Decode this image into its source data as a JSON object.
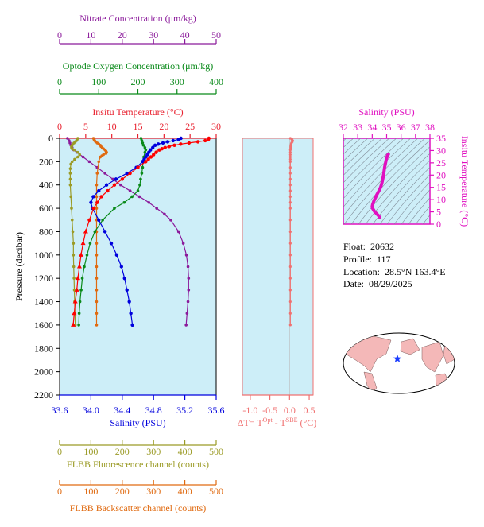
{
  "float_info": {
    "float_label": "Float:",
    "float_value": "20632",
    "profile_label": "Profile:",
    "profile_value": "117",
    "location_label": "Location:",
    "location_value": "28.5°N  163.4°E",
    "date_label": "Date:",
    "date_value": "08/29/2025"
  },
  "colors": {
    "temperature": "#ff0000",
    "salinity": "#0000dd",
    "oxygen": "#0a8a1a",
    "nitrate": "#8b1a9b",
    "fluorescence": "#9b9b26",
    "backscatter": "#e06a10",
    "delta_t": "#f07070",
    "ts": "#e010c0",
    "plot_bg": "#cdeef8",
    "label_red": "#e8202e",
    "map_land": "#f4b8b8",
    "map_ocean": "#ffffff"
  },
  "chart_data": [
    {
      "id": "main-profile",
      "type": "line",
      "ylabel": "Pressure (decibar)",
      "ylim": [
        0,
        2200
      ],
      "yticks": [
        0,
        200,
        400,
        600,
        800,
        1000,
        1200,
        1400,
        1600,
        1800,
        2000,
        2200
      ],
      "grid": false,
      "axes": {
        "nitrate": {
          "label": "Nitrate Concentration (μm/kg)",
          "range": [
            0,
            50
          ],
          "ticks": [
            0,
            10,
            20,
            30,
            40,
            50
          ],
          "position": "top"
        },
        "oxygen": {
          "label": "Optode Oxygen Concentration (μm/kg)",
          "range": [
            0,
            400
          ],
          "ticks": [
            0,
            100,
            200,
            300,
            400
          ],
          "position": "top"
        },
        "temperature": {
          "label": "Insitu Temperature (°C)",
          "range": [
            0,
            30
          ],
          "ticks": [
            0,
            5,
            10,
            15,
            20,
            25,
            30
          ],
          "position": "top"
        },
        "salinity": {
          "label": "Salinity (PSU)",
          "range": [
            33.6,
            35.6
          ],
          "ticks": [
            "33.6",
            "34.0",
            "34.4",
            "34.8",
            "35.2",
            "35.6"
          ],
          "position": "bottom"
        },
        "fluorescence": {
          "label": "FLBB Fluorescence channel (counts)",
          "range": [
            0,
            500
          ],
          "ticks": [
            0,
            100,
            200,
            300,
            400,
            500
          ],
          "position": "bottom"
        },
        "backscatter": {
          "label": "FLBB Backscatter channel (counts)",
          "range": [
            0,
            500
          ],
          "ticks": [
            0,
            100,
            200,
            300,
            400,
            500
          ],
          "position": "bottom"
        }
      },
      "series": [
        {
          "key": "temperature",
          "y": [
            0,
            10,
            20,
            30,
            40,
            50,
            60,
            70,
            80,
            90,
            100,
            120,
            140,
            160,
            180,
            200,
            250,
            300,
            350,
            400,
            450,
            500,
            550,
            600,
            700,
            800,
            900,
            1000,
            1100,
            1200,
            1300,
            1400,
            1500,
            1600
          ],
          "x": [
            28.6,
            28.5,
            27.9,
            26.5,
            24.8,
            23.2,
            22.0,
            21.0,
            20.2,
            19.6,
            19.1,
            18.5,
            18.0,
            17.5,
            17.0,
            16.5,
            15.0,
            13.5,
            12.0,
            10.5,
            9.2,
            8.0,
            7.2,
            6.5,
            5.7,
            5.0,
            4.5,
            4.1,
            3.8,
            3.5,
            3.3,
            3.0,
            2.8,
            2.6
          ]
        },
        {
          "key": "salinity",
          "y": [
            0,
            10,
            20,
            30,
            40,
            50,
            60,
            80,
            100,
            120,
            140,
            160,
            180,
            200,
            250,
            300,
            350,
            400,
            450,
            500,
            550,
            600,
            700,
            800,
            900,
            1000,
            1100,
            1200,
            1300,
            1400,
            1500,
            1600
          ],
          "x": [
            35.15,
            35.12,
            35.05,
            34.98,
            34.92,
            34.86,
            34.82,
            34.79,
            34.76,
            34.74,
            34.72,
            34.7,
            34.68,
            34.66,
            34.58,
            34.46,
            34.32,
            34.2,
            34.1,
            34.03,
            34.0,
            34.02,
            34.1,
            34.18,
            34.26,
            34.33,
            34.39,
            34.43,
            34.46,
            34.49,
            34.51,
            34.53
          ]
        },
        {
          "key": "oxygen",
          "y": [
            0,
            20,
            40,
            60,
            80,
            100,
            120,
            160,
            200,
            250,
            300,
            350,
            400,
            450,
            500,
            550,
            600,
            700,
            800,
            900,
            1000,
            1100,
            1200,
            1300,
            1400,
            1500,
            1600
          ],
          "x": [
            208,
            210,
            212,
            214,
            218,
            220,
            218,
            215,
            213,
            212,
            210,
            207,
            205,
            200,
            185,
            165,
            140,
            110,
            90,
            78,
            70,
            63,
            58,
            55,
            52,
            50,
            49
          ]
        },
        {
          "key": "nitrate",
          "y": [
            0,
            20,
            40,
            60,
            80,
            100,
            120,
            160,
            200,
            250,
            300,
            350,
            400,
            450,
            500,
            550,
            600,
            650,
            700,
            800,
            900,
            1000,
            1100,
            1200,
            1300,
            1400,
            1500,
            1600
          ],
          "x": [
            2.5,
            3.0,
            3.3,
            3.6,
            4.0,
            4.5,
            5.5,
            7.5,
            9.5,
            12.0,
            14.5,
            17.0,
            19.5,
            22.5,
            25.5,
            28.5,
            31.0,
            33.5,
            35.5,
            38.0,
            39.5,
            40.5,
            41.0,
            41.2,
            41.2,
            41.0,
            40.7,
            40.4
          ]
        },
        {
          "key": "fluorescence",
          "y": [
            0,
            10,
            20,
            30,
            40,
            50,
            60,
            70,
            80,
            90,
            100,
            120,
            140,
            160,
            180,
            200,
            220,
            260,
            300,
            350,
            400,
            500,
            600,
            700,
            800,
            900,
            1000,
            1100,
            1200,
            1300,
            1400,
            1500,
            1600
          ],
          "x": [
            58,
            56,
            54,
            50,
            46,
            42,
            40,
            38,
            38,
            40,
            46,
            58,
            64,
            58,
            48,
            40,
            36,
            34,
            34,
            34,
            34,
            36,
            38,
            40,
            42,
            44,
            44,
            45,
            46,
            47,
            48,
            49,
            50
          ]
        },
        {
          "key": "backscatter",
          "y": [
            0,
            10,
            20,
            30,
            40,
            50,
            60,
            70,
            80,
            90,
            100,
            110,
            120,
            130,
            140,
            150,
            160,
            200,
            300,
            400,
            500,
            600,
            700,
            800,
            900,
            1000,
            1100,
            1200,
            1300,
            1400,
            1500,
            1600
          ],
          "x": [
            108,
            110,
            112,
            115,
            120,
            125,
            130,
            132,
            136,
            140,
            145,
            148,
            150,
            148,
            140,
            135,
            130,
            125,
            120,
            118,
            118,
            118,
            118,
            118,
            118,
            118,
            118,
            118,
            118,
            118,
            118,
            118
          ]
        }
      ]
    },
    {
      "id": "delta-t",
      "type": "line",
      "xlabel": "ΔT= T",
      "xlabel_sup1": "Opt",
      "xlabel_mid": " - T",
      "xlabel_sup2": "SBE",
      "xlabel_unit": " (°C)",
      "xlim": [
        -1.2,
        0.6
      ],
      "xticks": [
        "-1.0",
        "-0.5",
        "0.0",
        "0.5"
      ],
      "xtick_values": [
        -1.0,
        -0.5,
        0.0,
        0.5
      ],
      "ylim": [
        0,
        2200
      ],
      "x": [
        0.02,
        0.06,
        0.08,
        0.07,
        0.05,
        0.04,
        0.04,
        0.03,
        0.03,
        0.03,
        0.02,
        0.02,
        0.02,
        0.02,
        0.02,
        0.02,
        0.02,
        0.02,
        0.02,
        0.02,
        0.02,
        0.02,
        0.02,
        0.02,
        0.02,
        0.02,
        0.02,
        0.02,
        0.02,
        0.02,
        0.02,
        0.02,
        0.02,
        0.02
      ],
      "y": [
        0,
        10,
        20,
        30,
        40,
        50,
        60,
        70,
        80,
        90,
        100,
        120,
        140,
        160,
        180,
        200,
        250,
        300,
        350,
        400,
        450,
        500,
        550,
        600,
        700,
        800,
        900,
        1000,
        1100,
        1200,
        1300,
        1400,
        1500,
        1600
      ]
    },
    {
      "id": "ts-diagram",
      "type": "line",
      "xlabel": "Salinity (PSU)",
      "ylabel": "Insitu Temperature (°C)",
      "xlim": [
        32,
        38
      ],
      "ylim": [
        0,
        35
      ],
      "xticks": [
        32,
        33,
        34,
        35,
        36,
        37,
        38
      ],
      "yticks": [
        0,
        5,
        10,
        15,
        20,
        25,
        30,
        35
      ],
      "x": [
        34.53,
        34.49,
        34.43,
        34.33,
        34.18,
        34.1,
        34.02,
        34.0,
        34.03,
        34.1,
        34.2,
        34.32,
        34.46,
        34.58,
        34.66,
        34.72,
        34.79,
        34.86,
        34.98,
        35.05,
        35.12
      ],
      "y": [
        2.6,
        3.0,
        3.5,
        4.1,
        5.0,
        5.7,
        6.5,
        7.2,
        8.0,
        9.2,
        10.5,
        12.0,
        13.5,
        15.0,
        16.5,
        18.0,
        20.2,
        23.2,
        26.5,
        27.9,
        28.5
      ]
    }
  ]
}
